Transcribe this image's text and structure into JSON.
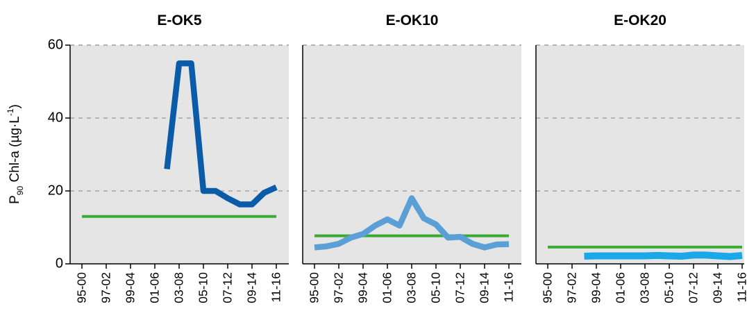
{
  "ylabel": {
    "main": "P",
    "sub": "90",
    "rest": " Chl-a (µg·L",
    "sup": "-1",
    "end": ")"
  },
  "y_ticks": [
    0,
    20,
    40,
    60
  ],
  "colors": {
    "panel_bg": "#e5e5e5",
    "grid": "#b3b3b3",
    "threshold": "#3aaa35",
    "series": [
      "#0a5ca8",
      "#5aa0d6",
      "#1ba8e8"
    ]
  },
  "chart_data": [
    {
      "type": "line",
      "title": "E-OK5",
      "ylabel": "P90 Chl-a (µg·L-1)",
      "ylim": [
        0,
        60
      ],
      "grid": "horizontal dashed",
      "x_ticks": [
        "95-00",
        "97-02",
        "99-04",
        "01-06",
        "03-08",
        "05-10",
        "07-12",
        "09-14",
        "11-16"
      ],
      "x": [
        "95-00",
        "96-01",
        "97-02",
        "98-03",
        "99-04",
        "00-05",
        "01-06",
        "02-07",
        "03-08",
        "04-09",
        "05-10",
        "06-11",
        "07-12",
        "08-13",
        "09-14",
        "10-15",
        "11-16"
      ],
      "series": [
        {
          "values": [
            null,
            null,
            null,
            null,
            null,
            null,
            null,
            26,
            55,
            55,
            20,
            20,
            18,
            16.3,
            16.3,
            19.5,
            21
          ]
        }
      ],
      "reference_line": 13
    },
    {
      "type": "line",
      "title": "E-OK10",
      "ylim": [
        0,
        60
      ],
      "grid": "horizontal dashed",
      "x_ticks": [
        "95-00",
        "97-02",
        "99-04",
        "01-06",
        "03-08",
        "05-10",
        "07-12",
        "09-14",
        "11-16"
      ],
      "x": [
        "95-00",
        "96-01",
        "97-02",
        "98-03",
        "99-04",
        "00-05",
        "01-06",
        "02-07",
        "03-08",
        "04-09",
        "05-10",
        "06-11",
        "07-12",
        "08-13",
        "09-14",
        "10-15",
        "11-16"
      ],
      "series": [
        {
          "values": [
            4.5,
            4.8,
            5.5,
            7.2,
            8.2,
            10.5,
            12.2,
            10.5,
            18,
            12.5,
            10.8,
            7.2,
            7.4,
            5.5,
            4.5,
            5.3,
            5.4
          ]
        }
      ],
      "reference_line": 7.7
    },
    {
      "type": "line",
      "title": "E-OK20",
      "ylim": [
        0,
        60
      ],
      "grid": "horizontal dashed",
      "x_ticks": [
        "95-00",
        "97-02",
        "99-04",
        "01-06",
        "03-08",
        "05-10",
        "07-12",
        "09-14",
        "11-16"
      ],
      "x": [
        "95-00",
        "96-01",
        "97-02",
        "98-03",
        "99-04",
        "00-05",
        "01-06",
        "02-07",
        "03-08",
        "04-09",
        "05-10",
        "06-11",
        "07-12",
        "08-13",
        "09-14",
        "10-15",
        "11-16"
      ],
      "series": [
        {
          "values": [
            null,
            null,
            null,
            2.1,
            2.2,
            2.2,
            2.2,
            2.2,
            2.2,
            2.3,
            2.2,
            2.1,
            2.4,
            2.4,
            2.2,
            2.0,
            2.3
          ]
        }
      ],
      "reference_line": 4.6
    }
  ]
}
